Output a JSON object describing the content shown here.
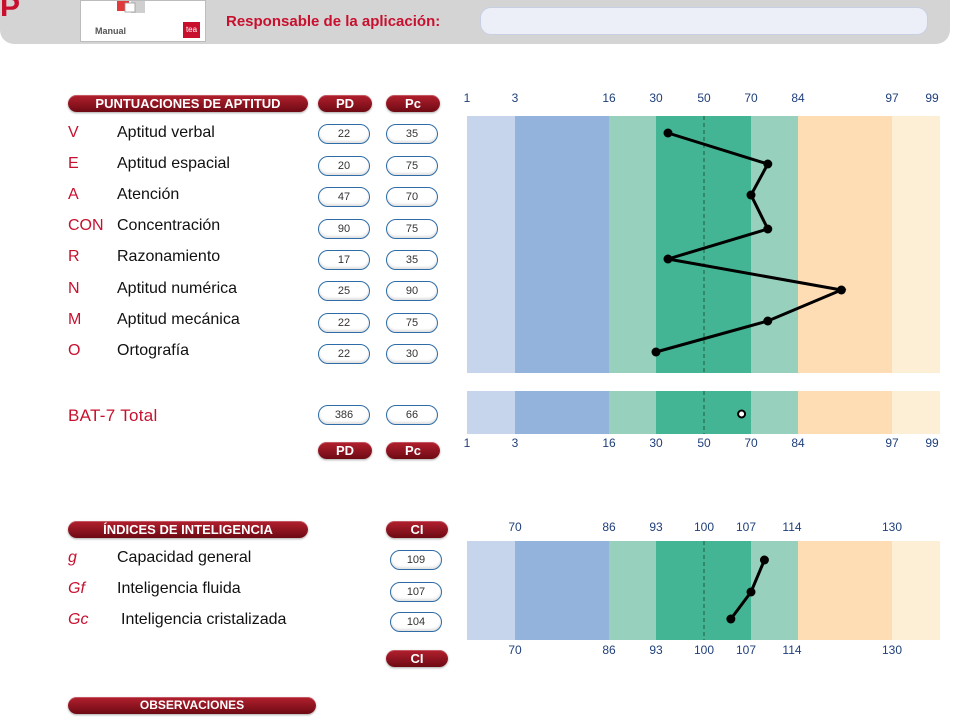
{
  "header": {
    "brand_letter": "P",
    "manual_label": "Manual",
    "publisher_logo": "tea",
    "responsible_label": "Responsable de la aplicación:",
    "responsible_value": ""
  },
  "aptitude": {
    "section_title": "PUNTUACIONES DE APTITUD",
    "pd_header": "PD",
    "pc_header": "Pc",
    "rows": [
      {
        "code": "V",
        "name": "Aptitud verbal",
        "pd": "22",
        "pc": "35"
      },
      {
        "code": "E",
        "name": "Aptitud espacial",
        "pd": "20",
        "pc": "75"
      },
      {
        "code": "A",
        "name": "Atención",
        "pd": "47",
        "pc": "70"
      },
      {
        "code": "CON",
        "name": "Concentración",
        "pd": "90",
        "pc": "75"
      },
      {
        "code": "R",
        "name": "Razonamiento",
        "pd": "17",
        "pc": "35"
      },
      {
        "code": "N",
        "name": "Aptitud numérica",
        "pd": "25",
        "pc": "90"
      },
      {
        "code": "M",
        "name": "Aptitud mecánica",
        "pd": "22",
        "pc": "75"
      },
      {
        "code": "O",
        "name": "Ortografía",
        "pd": "22",
        "pc": "30"
      }
    ],
    "total": {
      "label": "BAT-7 Total",
      "pd": "386",
      "pc": "66"
    }
  },
  "intelligence": {
    "section_title": "ÍNDICES DE INTELIGENCIA",
    "ci_header": "CI",
    "rows": [
      {
        "code": "g",
        "name": "Capacidad general",
        "ci": "109"
      },
      {
        "code": "Gf",
        "name": "Inteligencia fluida",
        "ci": "107"
      },
      {
        "code": "Gc",
        "name": "Inteligencia cristalizada",
        "ci": "104"
      }
    ]
  },
  "observations": {
    "section_title": "OBSERVACIONES"
  },
  "chart_data": [
    {
      "type": "line",
      "title": "",
      "x_axis": "percentile",
      "tick_labels": [
        "1",
        "3",
        "16",
        "30",
        "50",
        "70",
        "84",
        "97",
        "99"
      ],
      "reference_line": 50,
      "series": [
        {
          "categories": [
            "V",
            "E",
            "A",
            "CON",
            "R",
            "N",
            "M",
            "O"
          ],
          "values": [
            35,
            75,
            70,
            75,
            35,
            90,
            75,
            30
          ]
        }
      ],
      "band_colors": [
        "#c7d5ec",
        "#94b3dc",
        "#97d0bd",
        "#44b594",
        "#97d0bd",
        "#fedcb4",
        "#fdeed6"
      ]
    },
    {
      "type": "scatter",
      "title": "",
      "x_axis": "percentile",
      "tick_labels": [
        "1",
        "3",
        "16",
        "30",
        "50",
        "70",
        "84",
        "97",
        "99"
      ],
      "series": [
        {
          "categories": [
            "BAT-7 Total"
          ],
          "values": [
            66
          ]
        }
      ]
    },
    {
      "type": "line",
      "title": "",
      "x_axis": "CI",
      "tick_labels": [
        "70",
        "86",
        "93",
        "100",
        "107",
        "114",
        "130"
      ],
      "reference_line": 100,
      "series": [
        {
          "categories": [
            "g",
            "Gf",
            "Gc"
          ],
          "values": [
            109,
            107,
            104
          ]
        }
      ]
    }
  ]
}
